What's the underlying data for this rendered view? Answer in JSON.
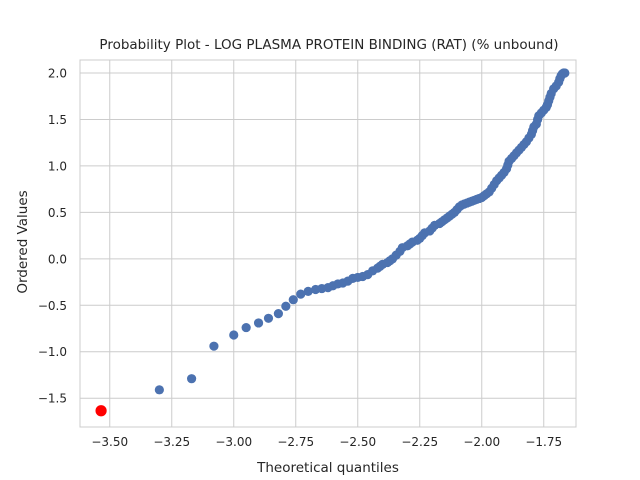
{
  "chart_data": {
    "type": "scatter",
    "title": "Probability Plot - LOG PLASMA PROTEIN BINDING (RAT) (% unbound)",
    "xlabel": "Theoretical quantiles",
    "ylabel": "Ordered Values",
    "xlim": [
      -3.62,
      -1.62
    ],
    "ylim": [
      -1.81,
      2.14
    ],
    "xticks": [
      -3.5,
      -3.25,
      -3.0,
      -2.75,
      -2.5,
      -2.25,
      -2.0,
      -1.75
    ],
    "xtick_labels": [
      "−3.50",
      "−3.25",
      "−3.00",
      "−2.75",
      "−2.50",
      "−2.25",
      "−2.00",
      "−1.75"
    ],
    "yticks": [
      -1.5,
      -1.0,
      -0.5,
      0.0,
      0.5,
      1.0,
      1.5,
      2.0
    ],
    "ytick_labels": [
      "−1.5",
      "−1.0",
      "−0.5",
      "0.0",
      "0.5",
      "1.0",
      "1.5",
      "2.0"
    ],
    "grid": true,
    "series_color": "#4c72b0",
    "highlight_color": "#ff0000",
    "highlight": {
      "x": -3.535,
      "y": -1.635
    },
    "points": [
      [
        -3.3,
        -1.41
      ],
      [
        -3.17,
        -1.29
      ],
      [
        -3.08,
        -0.94
      ],
      [
        -3.0,
        -0.82
      ],
      [
        -2.95,
        -0.74
      ],
      [
        -2.9,
        -0.69
      ],
      [
        -2.86,
        -0.64
      ],
      [
        -2.82,
        -0.59
      ],
      [
        -2.79,
        -0.51
      ],
      [
        -2.76,
        -0.44
      ],
      [
        -2.73,
        -0.38
      ],
      [
        -2.7,
        -0.35
      ],
      [
        -2.67,
        -0.33
      ],
      [
        -2.645,
        -0.32
      ],
      [
        -2.62,
        -0.31
      ],
      [
        -2.6,
        -0.29
      ],
      [
        -2.58,
        -0.27
      ],
      [
        -2.56,
        -0.26
      ],
      [
        -2.54,
        -0.24
      ],
      [
        -2.52,
        -0.21
      ],
      [
        -2.5,
        -0.2
      ],
      [
        -2.48,
        -0.19
      ],
      [
        -2.46,
        -0.17
      ],
      [
        -2.44,
        -0.13
      ],
      [
        -2.42,
        -0.1
      ],
      [
        -2.41,
        -0.08
      ],
      [
        -2.4,
        -0.06
      ],
      [
        -2.38,
        -0.04
      ],
      [
        -2.37,
        -0.02
      ],
      [
        -2.36,
        0.0
      ],
      [
        -2.345,
        0.04
      ],
      [
        -2.33,
        0.08
      ],
      [
        -2.32,
        0.12
      ],
      [
        -2.3,
        0.14
      ],
      [
        -2.29,
        0.16
      ],
      [
        -2.28,
        0.18
      ],
      [
        -2.26,
        0.2
      ],
      [
        -2.25,
        0.22
      ],
      [
        -2.24,
        0.25
      ],
      [
        -2.23,
        0.28
      ],
      [
        -2.21,
        0.3
      ],
      [
        -2.2,
        0.33
      ],
      [
        -2.19,
        0.36
      ],
      [
        -2.17,
        0.38
      ],
      [
        -2.16,
        0.4
      ],
      [
        -2.15,
        0.42
      ],
      [
        -2.14,
        0.44
      ],
      [
        -2.13,
        0.46
      ],
      [
        -2.12,
        0.48
      ],
      [
        -2.11,
        0.5
      ],
      [
        -2.1,
        0.53
      ],
      [
        -2.09,
        0.56
      ],
      [
        -2.08,
        0.58
      ],
      [
        -2.07,
        0.59
      ],
      [
        -2.06,
        0.6
      ],
      [
        -2.05,
        0.61
      ],
      [
        -2.04,
        0.62
      ],
      [
        -2.03,
        0.63
      ],
      [
        -2.02,
        0.64
      ],
      [
        -2.01,
        0.65
      ],
      [
        -2.0,
        0.66
      ],
      [
        -1.99,
        0.68
      ],
      [
        -1.98,
        0.7
      ],
      [
        -1.97,
        0.72
      ],
      [
        -1.96,
        0.76
      ],
      [
        -1.95,
        0.8
      ],
      [
        -1.94,
        0.84
      ],
      [
        -1.93,
        0.87
      ],
      [
        -1.92,
        0.9
      ],
      [
        -1.91,
        0.93
      ],
      [
        -1.9,
        0.97
      ],
      [
        -1.895,
        1.01
      ],
      [
        -1.89,
        1.05
      ],
      [
        -1.88,
        1.08
      ],
      [
        -1.87,
        1.11
      ],
      [
        -1.86,
        1.14
      ],
      [
        -1.85,
        1.17
      ],
      [
        -1.84,
        1.2
      ],
      [
        -1.83,
        1.23
      ],
      [
        -1.82,
        1.26
      ],
      [
        -1.81,
        1.3
      ],
      [
        -1.8,
        1.34
      ],
      [
        -1.795,
        1.38
      ],
      [
        -1.79,
        1.42
      ],
      [
        -1.78,
        1.45
      ],
      [
        -1.775,
        1.5
      ],
      [
        -1.77,
        1.54
      ],
      [
        -1.76,
        1.57
      ],
      [
        -1.75,
        1.6
      ],
      [
        -1.74,
        1.63
      ],
      [
        -1.735,
        1.66
      ],
      [
        -1.73,
        1.7
      ],
      [
        -1.725,
        1.74
      ],
      [
        -1.72,
        1.78
      ],
      [
        -1.71,
        1.83
      ],
      [
        -1.7,
        1.86
      ],
      [
        -1.69,
        1.9
      ],
      [
        -1.685,
        1.94
      ],
      [
        -1.68,
        1.97
      ],
      [
        -1.675,
        1.99
      ],
      [
        -1.67,
        2.0
      ],
      [
        -1.665,
        2.0
      ]
    ]
  }
}
